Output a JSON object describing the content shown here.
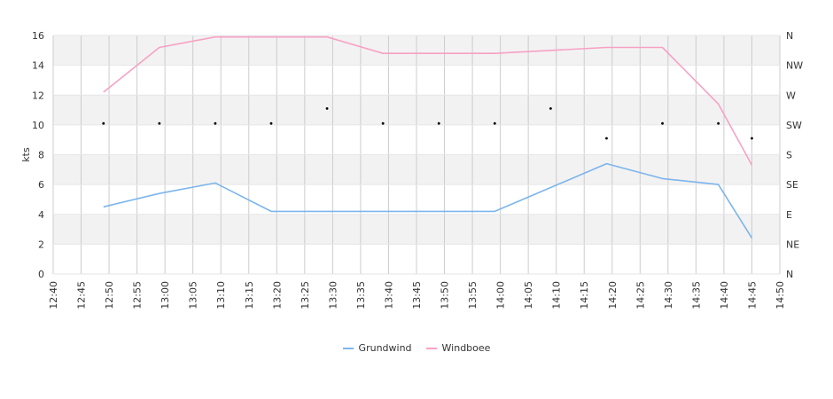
{
  "chart_data": {
    "type": "line",
    "ylabel": "kts",
    "ylim": [
      0,
      16
    ],
    "yticks": [
      "0",
      "2",
      "4",
      "6",
      "8",
      "10",
      "12",
      "14",
      "16"
    ],
    "y2ticks": [
      "N",
      "NE",
      "E",
      "SE",
      "S",
      "SW",
      "W",
      "NW",
      "N"
    ],
    "xticks": [
      "12:40",
      "12:45",
      "12:50",
      "12:55",
      "13:00",
      "13:05",
      "13:10",
      "13:15",
      "13:20",
      "13:25",
      "13:30",
      "13:35",
      "13:40",
      "13:45",
      "13:50",
      "13:55",
      "14:00",
      "14:05",
      "14:10",
      "14:15",
      "14:20",
      "14:25",
      "14:30",
      "14:35",
      "14:40",
      "14:45",
      "14:50"
    ],
    "x": [
      "12:49",
      "12:59",
      "13:09",
      "13:19",
      "13:29",
      "13:39",
      "13:49",
      "13:59",
      "14:09",
      "14:19",
      "14:29",
      "14:39",
      "14:45"
    ],
    "series": [
      {
        "name": "Grundwind",
        "color": "#7cb5ec",
        "values": [
          4.5,
          5.4,
          6.1,
          4.2,
          4.2,
          4.2,
          4.2,
          4.2,
          5.8,
          7.4,
          6.4,
          6.0,
          2.4
        ]
      },
      {
        "name": "Windboee",
        "color": "#f7a1c4",
        "values": [
          12.2,
          15.2,
          15.9,
          15.9,
          15.9,
          14.8,
          14.8,
          14.8,
          null,
          15.2,
          15.2,
          11.4,
          7.3
        ]
      }
    ],
    "direction": {
      "x": [
        "12:49",
        "12:59",
        "13:09",
        "13:19",
        "13:29",
        "13:39",
        "13:49",
        "13:59",
        "14:09",
        "14:19",
        "14:29",
        "14:39",
        "14:45"
      ],
      "values": [
        10.1,
        10.1,
        10.1,
        10.1,
        11.1,
        10.1,
        10.1,
        10.1,
        11.1,
        9.1,
        10.1,
        10.1,
        9.1
      ]
    },
    "grid": true,
    "legend_position": "bottom"
  }
}
